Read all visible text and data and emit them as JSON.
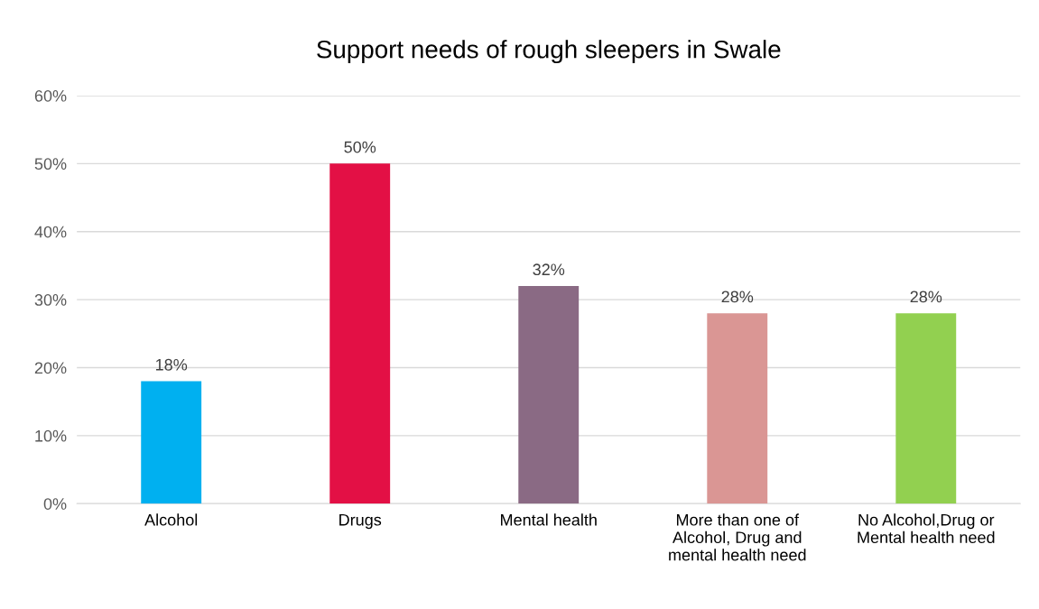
{
  "chart_data": {
    "type": "bar",
    "title": "Support needs of rough sleepers in Swale",
    "categories": [
      "Alcohol",
      "Drugs",
      "Mental health",
      "More than one of\nAlcohol, Drug and\nmental health need",
      "No Alcohol,Drug or\nMental health need"
    ],
    "values": [
      18,
      50,
      32,
      28,
      28
    ],
    "colors": [
      "#00b0f0",
      "#e31045",
      "#8a6a84",
      "#da9694",
      "#92d050"
    ],
    "value_labels": [
      "18%",
      "50%",
      "32%",
      "28%",
      "28%"
    ],
    "ylim": [
      0,
      60
    ],
    "yticks": [
      {
        "value": 0,
        "label": "0%"
      },
      {
        "value": 10,
        "label": "10%"
      },
      {
        "value": 20,
        "label": "20%"
      },
      {
        "value": 30,
        "label": "30%"
      },
      {
        "value": 40,
        "label": "40%"
      },
      {
        "value": 50,
        "label": "50%"
      },
      {
        "value": 60,
        "label": "60%"
      }
    ],
    "grid": "y",
    "legend": false
  }
}
